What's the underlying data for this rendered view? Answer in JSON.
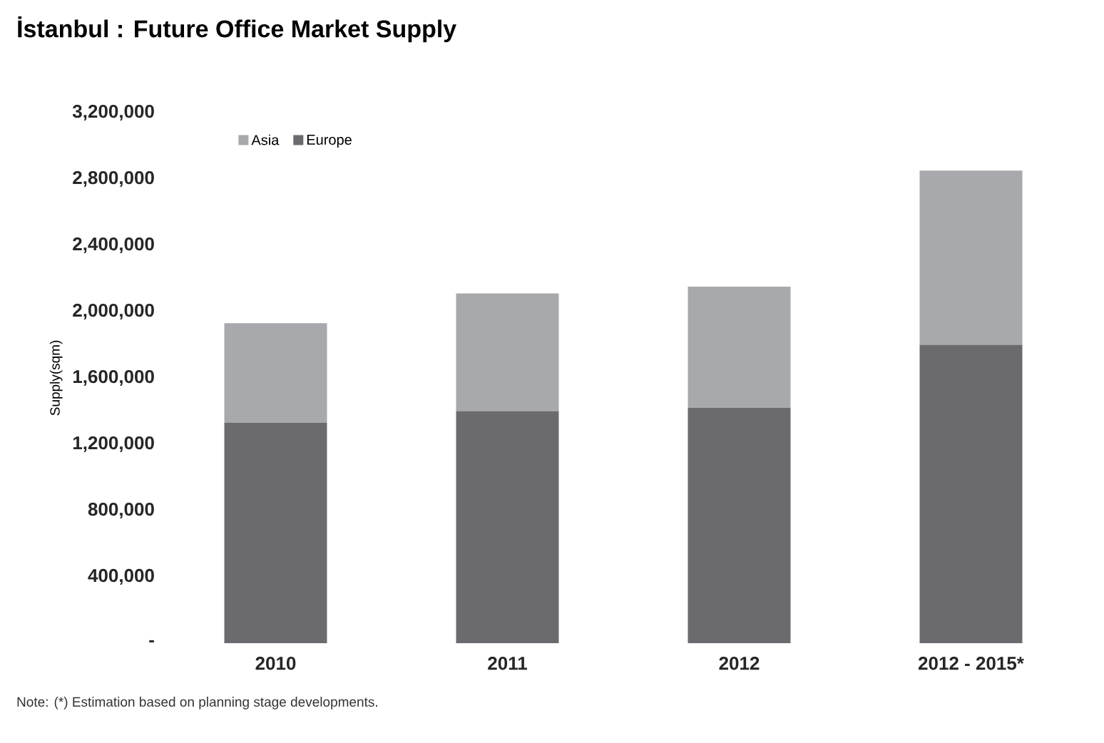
{
  "chart_data": {
    "type": "bar",
    "stacked": true,
    "title": "İstanbul : Future Office Market Supply",
    "ylabel": "Supply(sqm)",
    "categories": [
      "2010",
      "2011",
      "2012",
      "2012 - 2015*"
    ],
    "series": [
      {
        "name": "Europe",
        "color": "#6b6b6f",
        "values": [
          1330000,
          1400000,
          1420000,
          1800000
        ]
      },
      {
        "name": "Asia",
        "color": "#a8a9ac",
        "values": [
          600000,
          710000,
          730000,
          1050000
        ]
      }
    ],
    "ylim": [
      0,
      3200000
    ],
    "yticks": [
      {
        "value": 0,
        "label": "-"
      },
      {
        "value": 400000,
        "label": "400,000"
      },
      {
        "value": 800000,
        "label": "800,000"
      },
      {
        "value": 1200000,
        "label": "1,200,000"
      },
      {
        "value": 1600000,
        "label": "1,600,000"
      },
      {
        "value": 2000000,
        "label": "2,000,000"
      },
      {
        "value": 2400000,
        "label": "2,400,000"
      },
      {
        "value": 2800000,
        "label": "2,800,000"
      },
      {
        "value": 3200000,
        "label": "3,200,000"
      }
    ],
    "grid": false,
    "legend": "top left",
    "annotations": [
      "Note: (*) Estimation based on planning stage developments."
    ]
  }
}
